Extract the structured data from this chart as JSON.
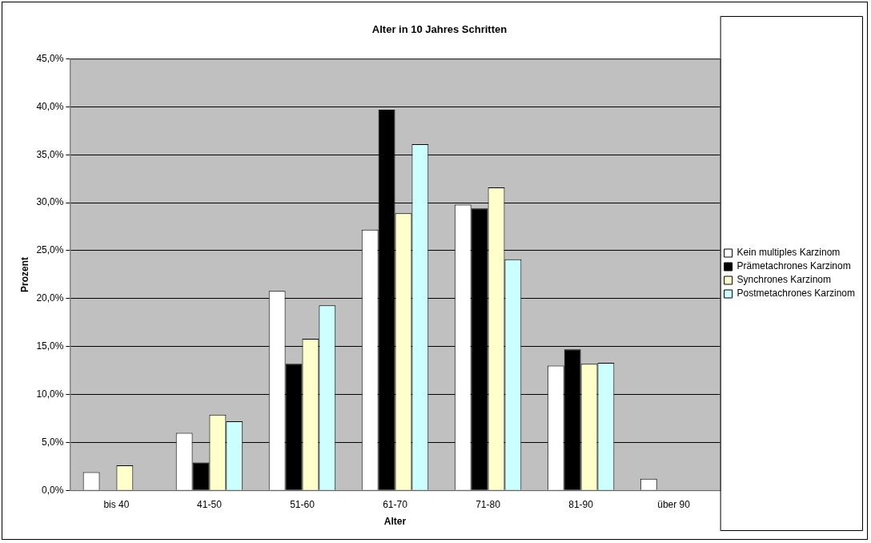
{
  "chart_data": {
    "type": "bar",
    "title": "Alter in 10 Jahres Schritten",
    "xlabel": "Alter",
    "ylabel": "Prozent",
    "categories": [
      "bis 40",
      "41-50",
      "51-60",
      "61-70",
      "71-80",
      "81-90",
      "über 90"
    ],
    "series": [
      {
        "name": "Kein multiples Karzinom",
        "color": "#ffffff",
        "values": [
          1.9,
          6.0,
          20.8,
          27.2,
          29.8,
          13.0,
          1.2
        ]
      },
      {
        "name": "Prämetachrones Karzinom",
        "color": "#000000",
        "values": [
          0,
          2.9,
          13.2,
          39.7,
          29.4,
          14.7,
          0
        ]
      },
      {
        "name": "Synchrones Karzinom",
        "color": "#ffffcc",
        "values": [
          2.6,
          7.9,
          15.8,
          28.9,
          31.6,
          13.2,
          0
        ]
      },
      {
        "name": "Postmetachrones Karzinom",
        "color": "#ccffff",
        "values": [
          0,
          7.2,
          19.3,
          36.1,
          24.1,
          13.3,
          0
        ]
      }
    ],
    "ylim": [
      0,
      45
    ],
    "yticks": [
      {
        "value": 0,
        "label": "0,0%"
      },
      {
        "value": 5,
        "label": "5,0%"
      },
      {
        "value": 10,
        "label": "10,0%"
      },
      {
        "value": 15,
        "label": "15,0%"
      },
      {
        "value": 20,
        "label": "20,0%"
      },
      {
        "value": 25,
        "label": "25,0%"
      },
      {
        "value": 30,
        "label": "30,0%"
      },
      {
        "value": 35,
        "label": "35,0%"
      },
      {
        "value": 40,
        "label": "40,0%"
      },
      {
        "value": 45,
        "label": "45,0%"
      }
    ],
    "grid": "y",
    "legend": "right"
  }
}
